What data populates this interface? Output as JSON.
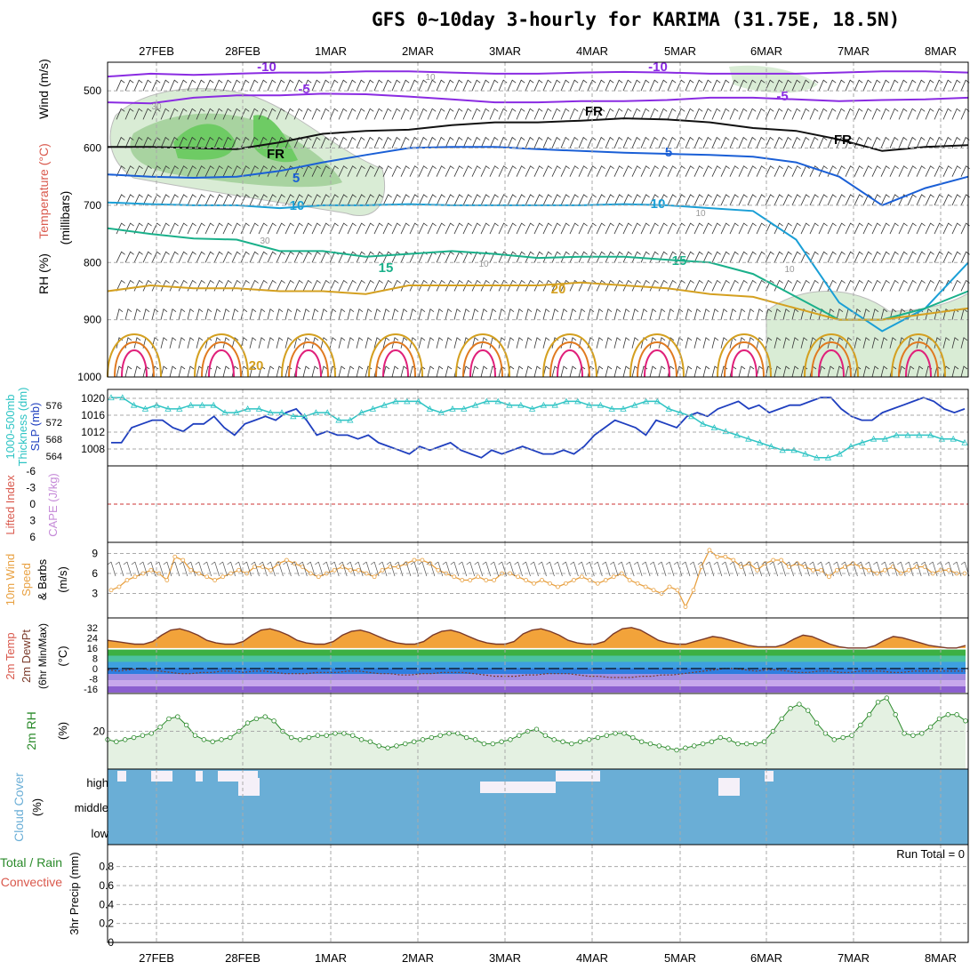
{
  "title": "GFS 0~10day 3-hourly for KARIMA (31.75E, 18.5N)",
  "dates": [
    "27FEB",
    "28FEB",
    "1MAR",
    "2MAR",
    "3MAR",
    "4MAR",
    "5MAR",
    "6MAR",
    "7MAR",
    "8MAR"
  ],
  "colors": {
    "grid": "#aaaaaa",
    "slp": "#1f3fbf",
    "thickness": "#2ec4c4",
    "wind10m": "#e8a040",
    "rh_fill": "#e4f1e2",
    "rh_line": "#2a8a2a",
    "cloud": "#6aaed6",
    "cloud_clear": "#f5f0f8",
    "freeze_line": "#cc3333"
  },
  "chart_data": [
    {
      "panel": "upper-air",
      "type": "heatmap",
      "ylabel_wind": "Wind (m/s)",
      "ylabel_temp": "Temperature (°C)",
      "ylabel_rh": "RH (%)",
      "ylabel_units": "(millibars)",
      "yticks": [
        "500",
        "600",
        "700",
        "800",
        "900",
        "1000"
      ],
      "ylim": [
        1000,
        450
      ],
      "isotherm_labels": [
        {
          "text": "-10",
          "color": "#8a2be2"
        },
        {
          "text": "-10",
          "color": "#8a2be2"
        },
        {
          "text": "-5",
          "color": "#8a2be2"
        },
        {
          "text": "-5",
          "color": "#8a2be2"
        },
        {
          "text": "FR",
          "color": "#000000"
        },
        {
          "text": "FR",
          "color": "#000000"
        },
        {
          "text": "FR",
          "color": "#000000"
        },
        {
          "text": "5",
          "color": "#1a5fd6"
        },
        {
          "text": "5",
          "color": "#1a5fd6"
        },
        {
          "text": "10",
          "color": "#1a9fd6"
        },
        {
          "text": "10",
          "color": "#1a9fd6"
        },
        {
          "text": "15",
          "color": "#1ab08a"
        },
        {
          "text": "15",
          "color": "#1ab08a"
        },
        {
          "text": "20",
          "color": "#d4a020"
        },
        {
          "text": "20",
          "color": "#d4a020"
        }
      ],
      "rh_labels": [
        "10",
        "30",
        "30",
        "10",
        "10",
        "10"
      ],
      "isotherms": [
        {
          "label": "-10",
          "color": "#8a2be2",
          "p": [
            475,
            470,
            472,
            470,
            468,
            468,
            466,
            466,
            468,
            470,
            470,
            468,
            467,
            468,
            470,
            470,
            470,
            468,
            466,
            466,
            468
          ]
        },
        {
          "label": "-5",
          "color": "#8a2be2",
          "p": [
            520,
            522,
            512,
            508,
            508,
            505,
            506,
            510,
            515,
            520,
            520,
            518,
            518,
            516,
            512,
            512,
            515,
            518,
            516,
            515,
            512
          ]
        },
        {
          "label": "FR",
          "color": "#111111",
          "p": [
            598,
            598,
            600,
            602,
            590,
            575,
            570,
            568,
            560,
            555,
            555,
            552,
            548,
            550,
            555,
            565,
            570,
            585,
            605,
            598,
            595
          ]
        },
        {
          "label": "5",
          "color": "#1a5fd6",
          "p": [
            646,
            650,
            652,
            650,
            640,
            625,
            612,
            600,
            598,
            598,
            602,
            605,
            608,
            610,
            612,
            615,
            625,
            650,
            700,
            670,
            650
          ]
        },
        {
          "label": "10",
          "color": "#1a9fd6",
          "p": [
            695,
            698,
            700,
            700,
            705,
            700,
            700,
            698,
            700,
            700,
            700,
            700,
            698,
            700,
            705,
            710,
            760,
            870,
            920,
            880,
            800
          ]
        },
        {
          "label": "15",
          "color": "#1ab08a",
          "p": [
            740,
            750,
            758,
            760,
            780,
            780,
            790,
            785,
            780,
            785,
            792,
            790,
            790,
            795,
            800,
            820,
            860,
            900,
            900,
            880,
            850
          ]
        },
        {
          "label": "20",
          "color": "#d4a020",
          "p": [
            850,
            840,
            845,
            845,
            850,
            850,
            855,
            840,
            840,
            840,
            840,
            835,
            840,
            845,
            855,
            860,
            880,
            900,
            900,
            890,
            880
          ]
        }
      ]
    },
    {
      "panel": "pressure",
      "type": "line",
      "ylabel_left": "Thickness (dm)",
      "ylabel_left_prefix": "1000-500mb",
      "ylabel_right": "SLP (mb)",
      "yticks_thickness": [
        "576",
        "572",
        "568",
        "564"
      ],
      "yticks_slp": [
        "1020",
        "1016",
        "1012",
        "1008"
      ],
      "series": [
        {
          "name": "SLP (mb)",
          "axis": "slp",
          "values": [
            1009,
            1009,
            1013,
            1014,
            1015,
            1015,
            1013,
            1012,
            1014,
            1014,
            1016,
            1013,
            1011,
            1014,
            1015,
            1016,
            1015,
            1017,
            1018,
            1015,
            1011,
            1012,
            1011,
            1011,
            1010,
            1011,
            1009,
            1008,
            1007,
            1006,
            1008,
            1007,
            1008,
            1009,
            1007,
            1006,
            1005,
            1007,
            1006,
            1007,
            1008,
            1007,
            1006,
            1006,
            1007,
            1006,
            1008,
            1011,
            1013,
            1015,
            1014,
            1013,
            1011,
            1015,
            1014,
            1013,
            1016,
            1017,
            1016,
            1018,
            1019,
            1020,
            1018,
            1019,
            1017,
            1018,
            1019,
            1019,
            1020,
            1021,
            1021,
            1018,
            1016,
            1015,
            1015,
            1017,
            1018,
            1019,
            1020,
            1021,
            1020,
            1018,
            1017,
            1018
          ]
        },
        {
          "name": "1000-500mb Thickness (dm)",
          "axis": "thickness",
          "values": [
            577,
            577,
            575,
            574,
            575,
            574,
            574,
            575,
            575,
            575,
            573,
            573,
            574,
            574,
            573,
            573,
            572,
            572,
            573,
            573,
            571,
            571,
            573,
            574,
            575,
            576,
            576,
            576,
            574,
            573,
            574,
            574,
            575,
            576,
            576,
            575,
            575,
            574,
            575,
            575,
            576,
            576,
            575,
            575,
            574,
            574,
            575,
            576,
            576,
            574,
            573,
            572,
            570,
            569,
            568,
            567,
            566,
            565,
            564,
            563,
            563,
            562,
            561,
            561,
            562,
            564,
            565,
            566,
            566,
            567,
            567,
            567,
            567,
            566,
            566,
            565
          ]
        }
      ]
    },
    {
      "panel": "stability",
      "type": "line",
      "ylabel_left": "Lifted Index",
      "ylabel_right": "CAPE (J/kg)",
      "yticks": [
        "-6",
        "-3",
        "0",
        "3",
        "6"
      ],
      "series": [
        {
          "name": "Lifted Index",
          "values": [
            0
          ]
        }
      ]
    },
    {
      "panel": "wind10m",
      "type": "line",
      "ylabel": "10m Wind Speed & Barbs",
      "ylabel_a": "10m Wind",
      "ylabel_b": "Speed",
      "ylabel_c": "& Barbs",
      "units": "(m/s)",
      "yticks": [
        "9",
        "6",
        "3"
      ],
      "ylim": [
        0,
        10
      ],
      "series": [
        {
          "name": "10m Wind Speed",
          "values": [
            3.5,
            4,
            5,
            5.5,
            6,
            6.5,
            6,
            5,
            8.5,
            8,
            6.5,
            6,
            5.5,
            5,
            5.5,
            6,
            6.5,
            6,
            7,
            7,
            6.5,
            7.5,
            8,
            7.5,
            7,
            6,
            5.5,
            6,
            6.5,
            7,
            6.5,
            6.5,
            6,
            5.5,
            6.5,
            7,
            7,
            7.5,
            8,
            8,
            7.5,
            6.5,
            6,
            5.5,
            5,
            5,
            5.5,
            5,
            5,
            6,
            6,
            5.5,
            5,
            4.5,
            5,
            4.5,
            4,
            4.5,
            5,
            5.5,
            5,
            4.5,
            5,
            5.5,
            6,
            5,
            4.5,
            4,
            3.5,
            3,
            4,
            3.5,
            1,
            3.5,
            7,
            9.5,
            8.5,
            8.5,
            8,
            7,
            7.5,
            6.5,
            7.5,
            8,
            8,
            7,
            7.5,
            7,
            6.5,
            6.5,
            5.5,
            6.5,
            7,
            7.5,
            7,
            6.5,
            6,
            6.5,
            7,
            6,
            6.5,
            7,
            7,
            6,
            6.5,
            6.5,
            6,
            6
          ]
        }
      ]
    },
    {
      "panel": "temp2m",
      "type": "area",
      "ylabel_a": "2m Temp",
      "ylabel_b": "2m DewPt",
      "ylabel_c": "(6hr Min/Max)",
      "units": "(°C)",
      "yticks": [
        "32",
        "24",
        "16",
        "8",
        "0",
        "-8",
        "-16"
      ],
      "ylim": [
        -16,
        36
      ],
      "series": [
        {
          "name": "2m Temp",
          "values": [
            22,
            21,
            20,
            19,
            19,
            21,
            26,
            30,
            31,
            29,
            26,
            22,
            20,
            19,
            19,
            21,
            26,
            30,
            31,
            29,
            26,
            22,
            20,
            19,
            19,
            21,
            26,
            29,
            30,
            28,
            25,
            22,
            20,
            19,
            19,
            21,
            26,
            29,
            30,
            28,
            25,
            22,
            20,
            19,
            19,
            21,
            27,
            30,
            31,
            29,
            26,
            22,
            20,
            19,
            19,
            21,
            27,
            31,
            32,
            30,
            26,
            22,
            20,
            19,
            19,
            21,
            23,
            25,
            24,
            22,
            20,
            18,
            17,
            17,
            17,
            19,
            23,
            26,
            25,
            22,
            19,
            17,
            16,
            16,
            16,
            18,
            22,
            25,
            24,
            22,
            20,
            18,
            17,
            16,
            16,
            18
          ]
        },
        {
          "name": "2m DewPt",
          "values": [
            -1,
            -2,
            -1,
            0,
            -1,
            -2,
            -3,
            -4,
            -4,
            -3,
            -3,
            -2,
            -2,
            -3,
            -2,
            -2,
            -3,
            -4,
            -4,
            -4,
            -3,
            -3,
            -3,
            -2,
            -2,
            -3,
            -4,
            -4,
            -5,
            -5,
            -4,
            -4,
            -3,
            -3,
            -3,
            -4,
            -5,
            -6,
            -6,
            -6,
            -5,
            -5,
            -4,
            -4,
            -4,
            -5,
            -6,
            -6,
            -7,
            -7,
            -7,
            -6,
            -6,
            -5,
            -5,
            -4,
            -3,
            -2,
            -1,
            0,
            0,
            -1,
            -2,
            -1,
            -1,
            -2,
            -3,
            -3,
            -2,
            -2,
            -3,
            -3,
            -2,
            -2,
            -2,
            -3,
            -3,
            -2,
            -2,
            -2,
            -2,
            -2,
            -2
          ]
        }
      ]
    },
    {
      "panel": "rh2m",
      "type": "area",
      "ylabel": "2m RH",
      "units": "(%)",
      "yticks": [
        "20"
      ],
      "ylim": [
        4,
        36
      ],
      "series": [
        {
          "name": "2m RH",
          "values": [
            16,
            15,
            16,
            17,
            18,
            19,
            22,
            26,
            27,
            23,
            18,
            16,
            15,
            16,
            17,
            20,
            24,
            26,
            27,
            25,
            20,
            17,
            16,
            17,
            18,
            18,
            19,
            19,
            18,
            16,
            15,
            13,
            12,
            13,
            14,
            15,
            16,
            17,
            18,
            19,
            19,
            17,
            16,
            14,
            14,
            15,
            16,
            18,
            20,
            21,
            18,
            16,
            15,
            14,
            15,
            16,
            17,
            18,
            19,
            19,
            17,
            15,
            14,
            13,
            12,
            11,
            12,
            13,
            14,
            15,
            17,
            16,
            14,
            14,
            14,
            15,
            20,
            26,
            31,
            33,
            30,
            24,
            19,
            16,
            17,
            18,
            23,
            28,
            34,
            36,
            28,
            19,
            18,
            19,
            22,
            26,
            28,
            28,
            25
          ]
        }
      ]
    },
    {
      "panel": "cloud",
      "type": "heatmap",
      "ylabel": "Cloud Cover",
      "units": "(%)",
      "levels": [
        "high",
        "middle",
        "low"
      ]
    },
    {
      "panel": "precip",
      "type": "bar",
      "ylabel": "3hr Precip (mm)",
      "legend_a": "Total / Rain",
      "legend_b": "Convective",
      "run_total": "Run Total = 0",
      "yticks": [
        "0.8",
        "0.6",
        "0.4",
        "0.2",
        "0"
      ],
      "ylim": [
        0,
        0.9
      ],
      "values": [
        0
      ]
    }
  ]
}
